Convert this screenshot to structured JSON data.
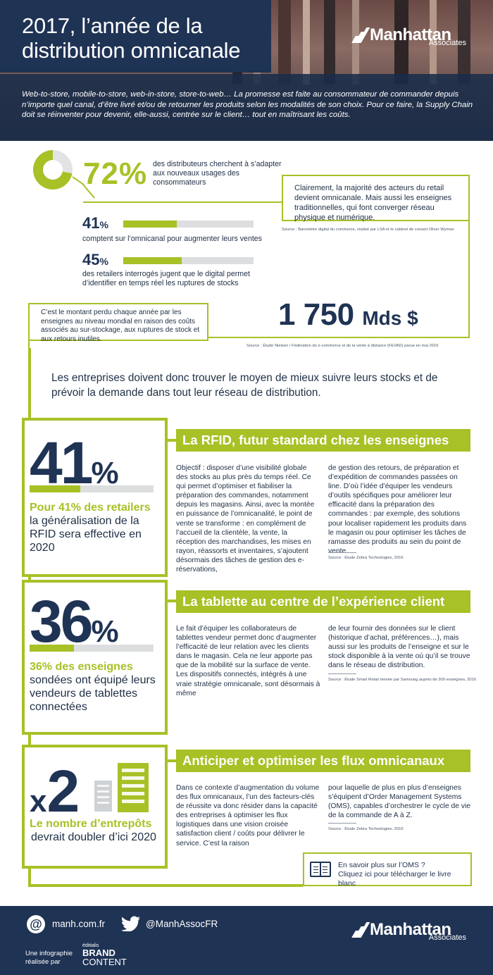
{
  "header": {
    "title_line1": "2017, l’année de la",
    "title_line2": "distribution omnicanale",
    "logo_main": "Manhattan",
    "logo_sub": "Associates",
    "intro": "Web-to-store, mobile-to-store, web-in-store, store-to-web… La promesse est faite au consommateur de commander depuis n’importe quel canal, d’être livré et/ou de retourner les produits selon les modalités de son choix. Pour ce faire, la Supply Chain doit se réinventer pour devenir, elle-aussi, centrée sur le client… tout en maîtrisant les coûts."
  },
  "stats": {
    "pct72": "72%",
    "pct72_fraction": 0.72,
    "pct72_text": "des distributeurs cherchent à s’adapter aux nouveaux usages des consommateurs",
    "callout1": "Clairement, la majorité des acteurs du retail devient omnicanale. Mais aussi les enseignes traditionnelles, qui font converger réseau physique et numérique.",
    "source1": "Source : Baromètre digital du commerce, réalisé par LSA et le cabinet de conseil Oliver Wyman",
    "pct41_value": "41",
    "pct41_text": "comptent sur l’omnicanal pour augmenter leurs ventes",
    "pct41_fraction": 0.41,
    "pct45_value": "45",
    "pct45_text": "des retailers interrogés jugent que le digital permet d’identifier en temps réel les ruptures de stocks",
    "pct45_fraction": 0.45,
    "percent_sign": "%",
    "callout2": "C’est le montant perdu chaque année par les enseignes au niveau mondial en raison des coûts associés au sur-stockage, aux ruptures de stock et aux retours inutiles.",
    "amount": "1 750",
    "amount_unit": "Mds $",
    "source2": "Source : Étude Nielsen / Fédération du e-commerce et de la vente à distance (FEVAD) parue en mai 2016"
  },
  "lead": "Les entreprises doivent donc trouver le moyen de mieux suivre leurs stocks et de prévoir la demande dans tout leur réseau de distribution.",
  "rfid": {
    "big": "41",
    "big_unit": "%",
    "fraction": 0.41,
    "desc_green": "Pour 41% des retailers",
    "desc_dark": "la généralisation de la RFID sera effective en 2020",
    "title": "La RFID, futur standard chez les enseignes",
    "col1": "Objectif : disposer d’une visibilité globale des stocks au plus près du temps réel. Ce qui permet d’optimiser et fiabiliser la préparation des commandes, notamment depuis les magasins. Ainsi, avec la montée en puissance de l’omnicanalité, le point de vente se transforme : en complément de l’accueil de la clientèle, la vente, la réception des marchandises, les mises en rayon, réassorts et inventaires, s’ajoutent désormais des tâches de gestion des e-réservations,",
    "col2": "de gestion des retours, de préparation et d’expédition de commandes passées on line. D’où l’idée d’équiper les vendeurs d’outils spécifiques pour améliorer leur efficacité dans la préparation des commandes : par exemple, des solutions pour localiser rapidement les produits dans le magasin ou pour optimiser les tâches de ramasse des produits au sein du point de vente.",
    "source": "Source : Étude Zebra Technologies, 2016"
  },
  "tablet": {
    "big": "36",
    "big_unit": "%",
    "fraction": 0.36,
    "desc_green": "36% des enseignes",
    "desc_dark": "sondées ont équipé leurs vendeurs de tablettes connectées",
    "title": "La tablette au centre de l’expérience client",
    "col1": "Le fait d’équiper les collaborateurs de tablettes vendeur permet donc d’augmenter l’efficacité de leur relation avec les clients dans le magasin. Cela ne leur apporte pas que de la mobilité sur la surface de vente. Les dispositifs connectés, intégrés à une vraie stratégie omnicanale, sont désormais à même",
    "col2": "de leur fournir des données sur le client (historique d’achat, préférences…), mais aussi sur les produits de l’enseigne et sur le stock disponible à la vente où qu’il se trouve dans le réseau de distribution.",
    "source": "Source : Étude Smart Retail menée par Samsung auprès de 300 enseignes, 2016"
  },
  "flux": {
    "big_prefix": "x",
    "big": "2",
    "desc_green": "Le nombre d’entrepôts",
    "desc_dark": "devrait doubler d’ici 2020",
    "title": "Anticiper et optimiser les flux omnicanaux",
    "col1": "Dans ce contexte d’augmentation du volume des flux omnicanaux, l’un des facteurs-clés de réussite va donc résider dans la capacité des entreprises à optimiser les flux logistiques dans une vision croisée satisfaction client / coûts pour délivrer le service. C’est la raison",
    "col2": "pour laquelle de plus en plus d’enseignes s’équipent d’Order Management Systems (OMS), capables d’orchestrer le cycle de vie de la commande de A à Z.",
    "source": "Source : Étude Zebra Technologies, 2016",
    "cta_line1": "En savoir plus sur l’OMS ?",
    "cta_line2": "Cliquez ici pour télécharger le livre blanc"
  },
  "footer": {
    "email_icon": "@",
    "website": "manh.com.fr",
    "twitter": "@ManhAssocFR",
    "credit_line1": "Une infographie",
    "credit_line2": "réalisée par",
    "brand_small": "éditialis",
    "brand_main1": "BRAND",
    "brand_main2": "CONTENT",
    "logo_main": "Manhattan",
    "logo_sub": "Associates"
  },
  "colors": {
    "navy": "#1f3354",
    "green": "#a7c126",
    "grey": "#dcdedf"
  }
}
